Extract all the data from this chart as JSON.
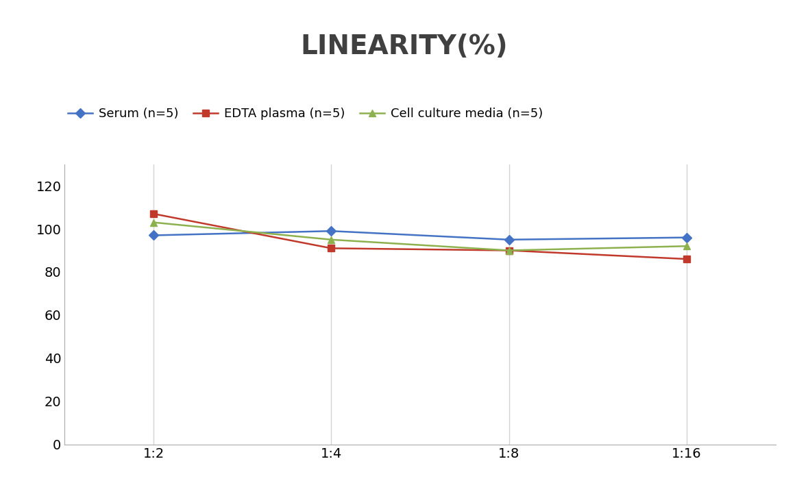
{
  "title": "LINEARITY(%)",
  "title_fontsize": 28,
  "title_fontweight": "bold",
  "title_color": "#404040",
  "x_labels": [
    "1:2",
    "1:4",
    "1:8",
    "1:16"
  ],
  "x_positions": [
    0,
    1,
    2,
    3
  ],
  "series": [
    {
      "label": "Serum (n=5)",
      "values": [
        97,
        99,
        95,
        96
      ],
      "color": "#4472C4",
      "marker": "D",
      "linewidth": 1.8,
      "markersize": 7
    },
    {
      "label": "EDTA plasma (n=5)",
      "values": [
        107,
        91,
        90,
        86
      ],
      "color": "#C0392B",
      "marker": "s",
      "linewidth": 1.8,
      "markersize": 7
    },
    {
      "label": "Cell culture media (n=5)",
      "values": [
        103,
        95,
        90,
        92
      ],
      "color": "#8DB14F",
      "marker": "^",
      "linewidth": 1.8,
      "markersize": 7
    }
  ],
  "ylim": [
    0,
    130
  ],
  "yticks": [
    0,
    20,
    40,
    60,
    80,
    100,
    120
  ],
  "grid_color": "#D3D3D3",
  "background_color": "#FFFFFF",
  "legend_fontsize": 13,
  "tick_fontsize": 14
}
